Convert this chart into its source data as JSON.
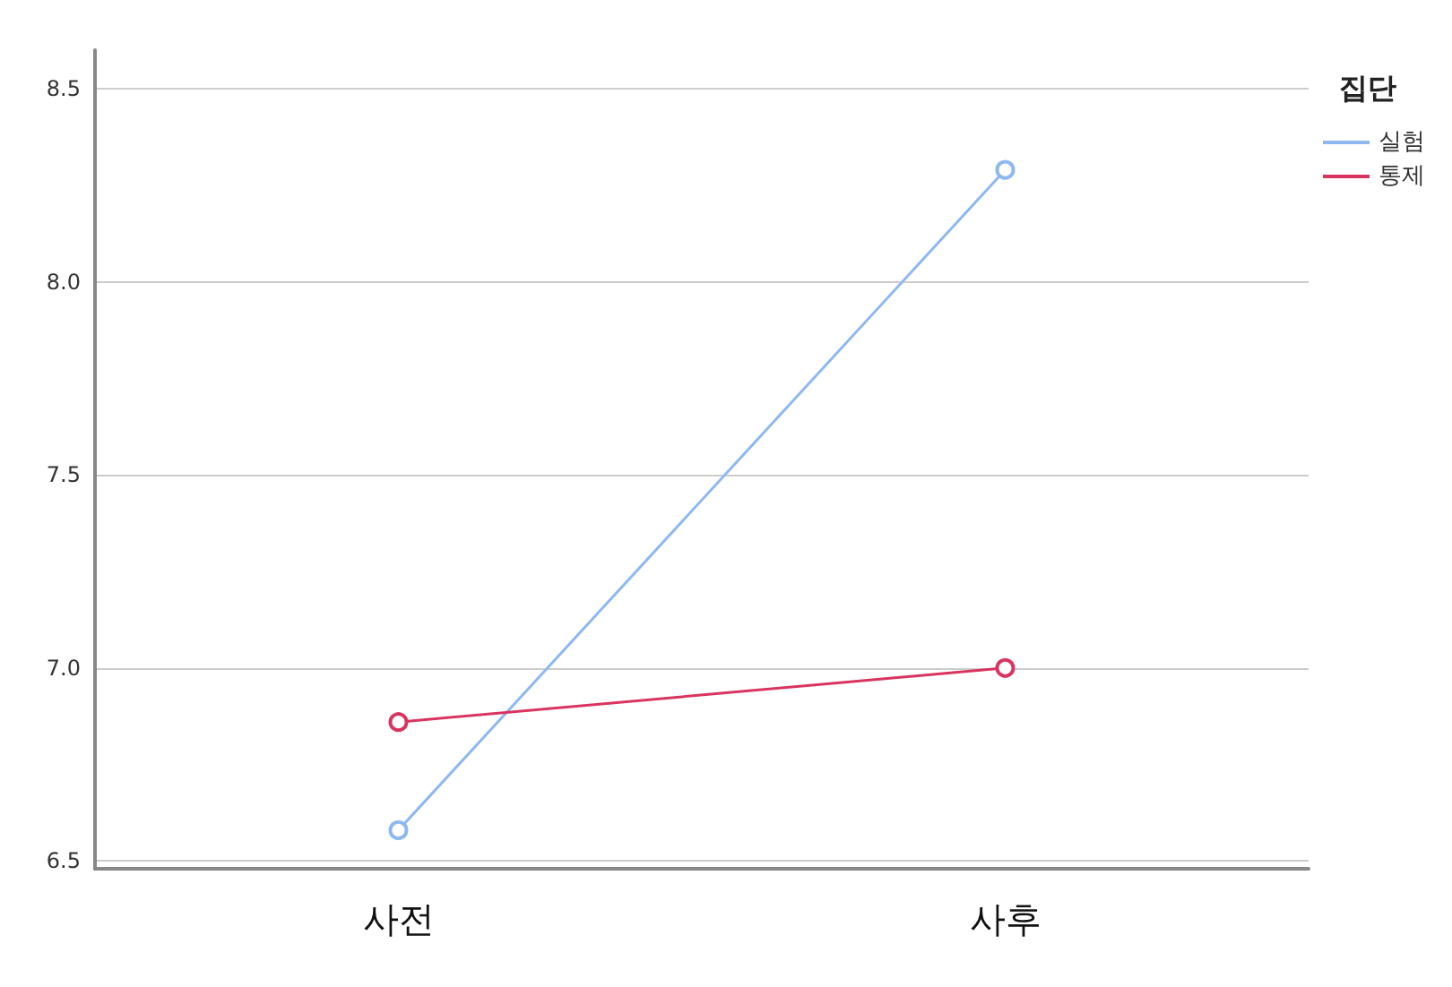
{
  "chart_data": {
    "type": "line",
    "legend_title": "집단",
    "categories": [
      "사전",
      "사후"
    ],
    "series": [
      {
        "name": "실험",
        "color": "#8fb8f0",
        "values": [
          6.58,
          8.29
        ]
      },
      {
        "name": "통제",
        "color": "#d9345f",
        "values": [
          6.86,
          7.0
        ]
      }
    ],
    "ylim": [
      6.48,
      8.6
    ],
    "yticks": [
      6.5,
      {
        "value": 7,
        "label": "7.0"
      },
      7.5,
      {
        "value": 8,
        "label": "8.0"
      },
      8.5
    ],
    "grid": "y",
    "legend": "top right",
    "marker": "circle",
    "line_style": "solid"
  }
}
